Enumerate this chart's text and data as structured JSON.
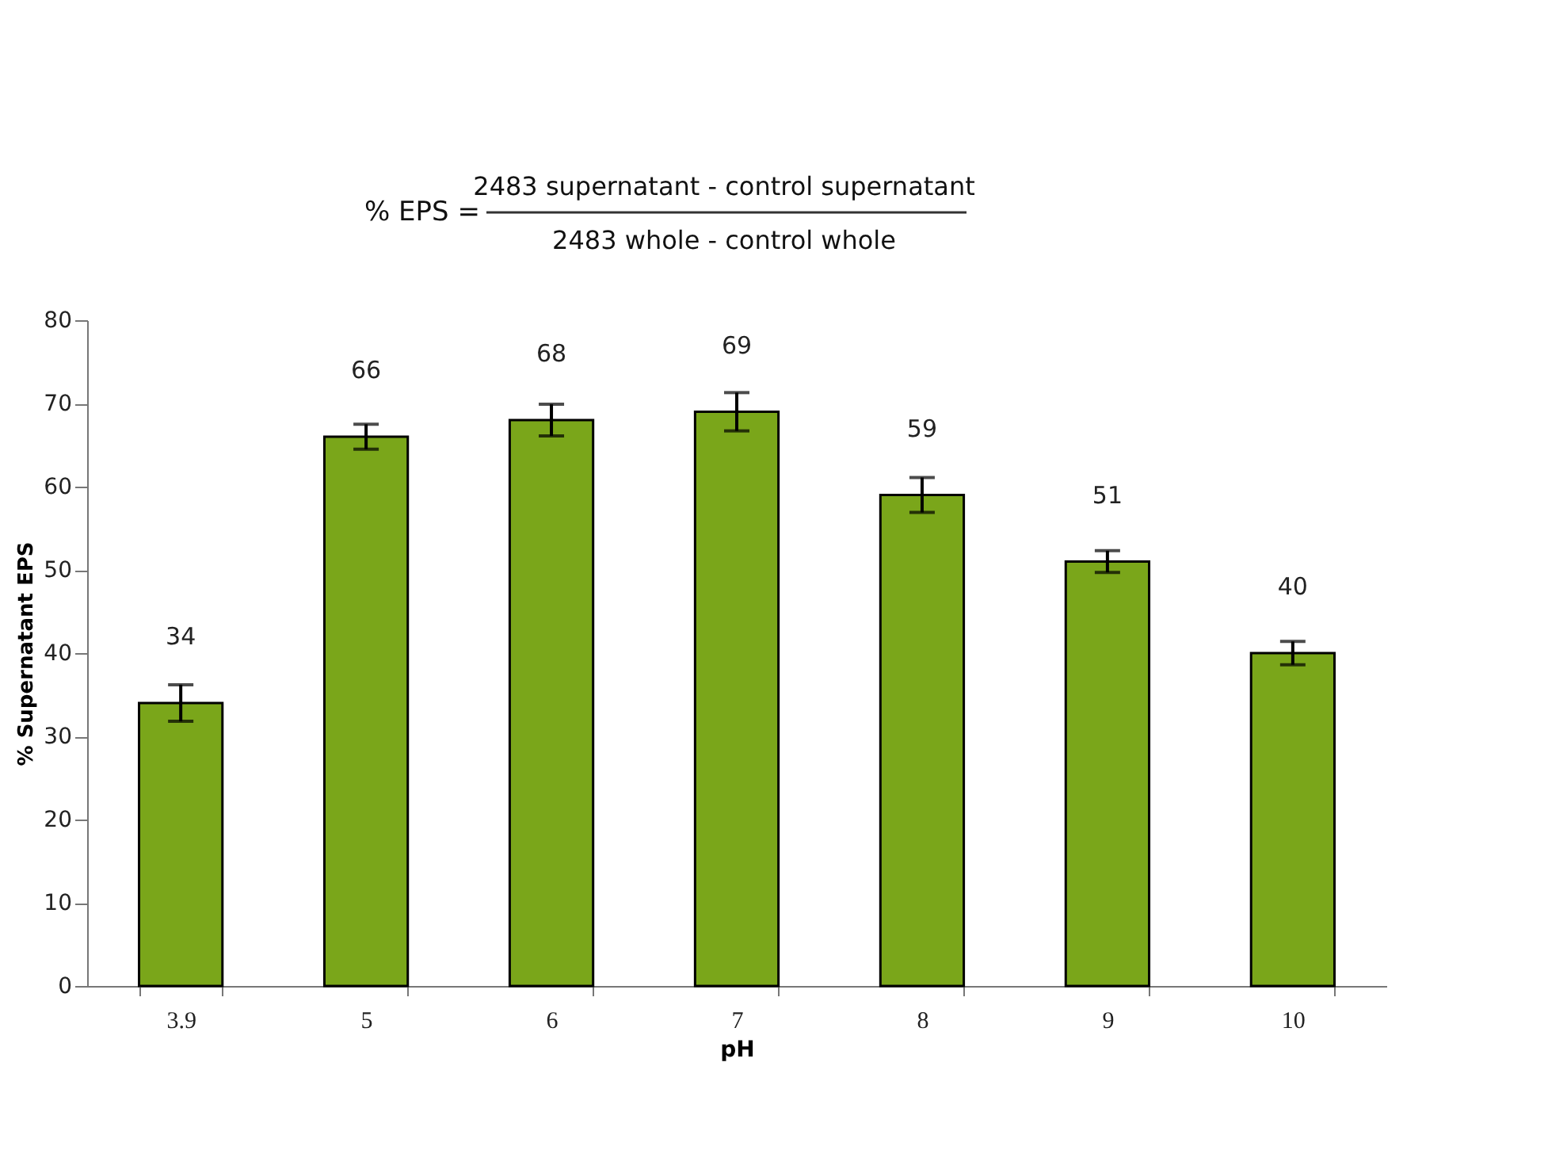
{
  "chart_data": {
    "type": "bar",
    "categories": [
      "3.9",
      "5",
      "6",
      "7",
      "8",
      "9",
      "10"
    ],
    "values": [
      34,
      66,
      68,
      69,
      59,
      51,
      40
    ],
    "errors": [
      2.2,
      1.5,
      1.9,
      2.3,
      2.1,
      1.3,
      1.4
    ],
    "color": "#7aa61a",
    "data_labels": true,
    "xlabel": "pH",
    "ylabel": "% Supernatant EPS",
    "ylim": [
      0,
      80
    ],
    "yticks": [
      0,
      10,
      20,
      30,
      40,
      50,
      60,
      70,
      80
    ],
    "grid": false,
    "annotations": [
      "% EPS =",
      "2483 supernatant - control supernatant",
      "2483 whole - control whole"
    ]
  }
}
